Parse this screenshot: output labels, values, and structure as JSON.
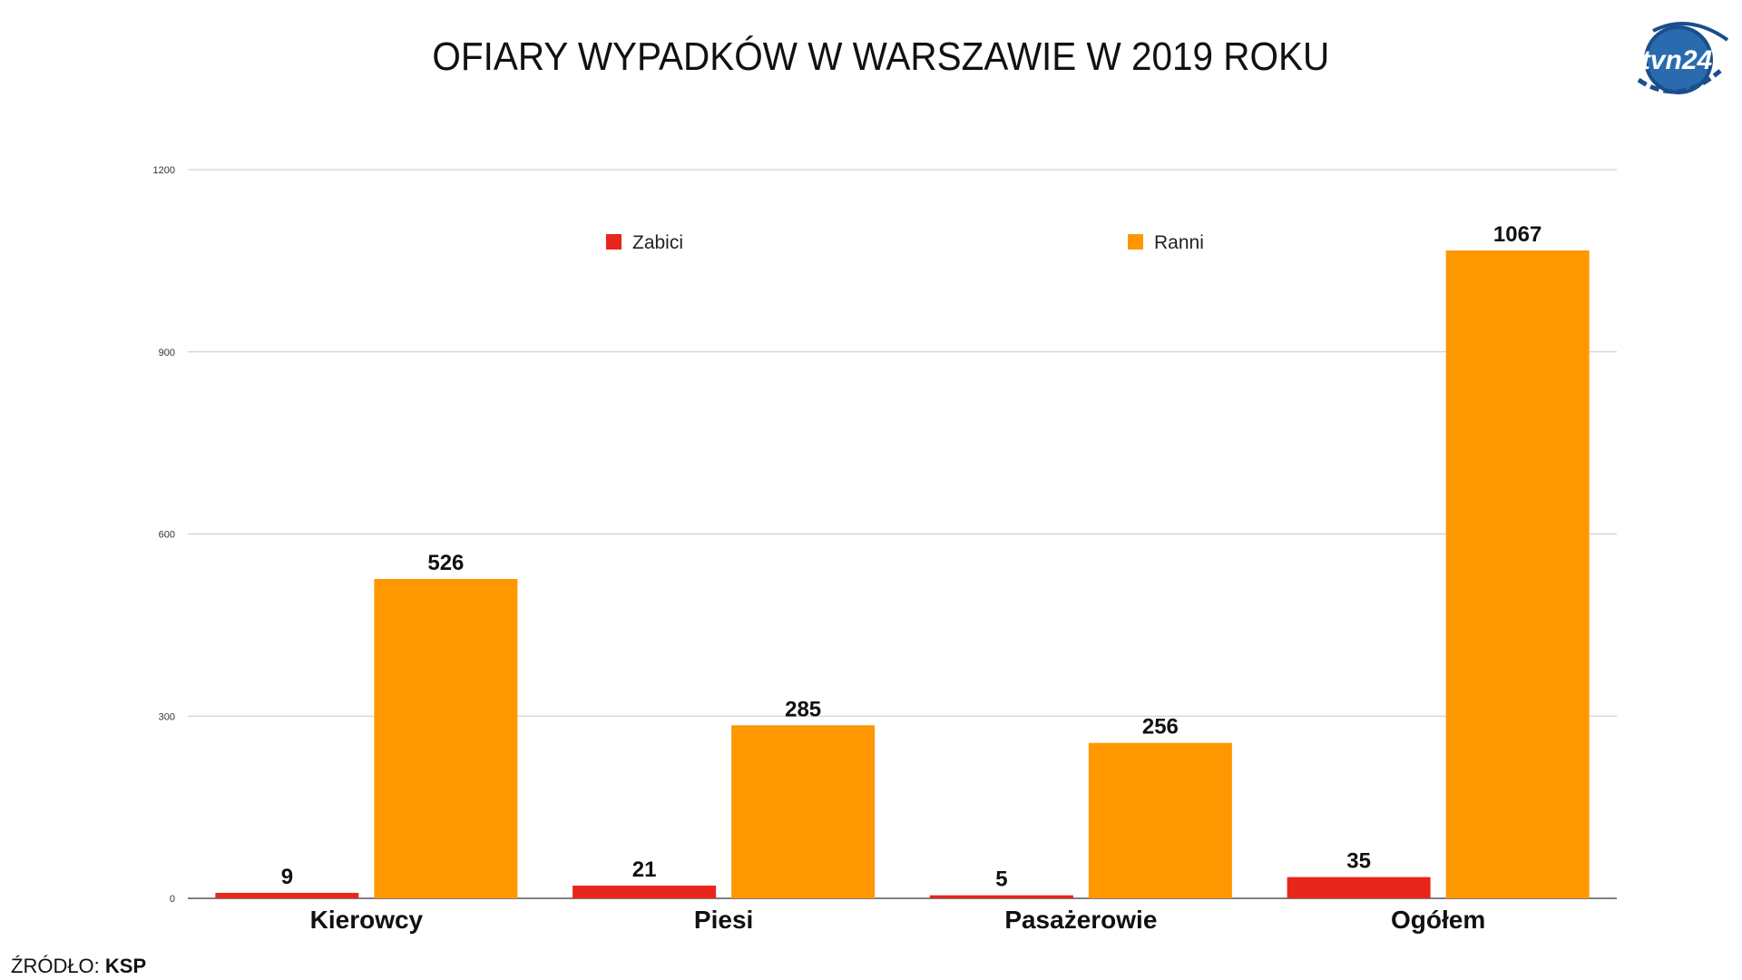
{
  "chart_data": {
    "type": "bar",
    "title": "OFIARY WYPADKÓW W WARSZAWIE W 2019 ROKU",
    "categories": [
      "Kierowcy",
      "Piesi",
      "Pasażerowie",
      "Ogółem"
    ],
    "series": [
      {
        "name": "Zabici",
        "values": [
          9,
          21,
          5,
          35
        ],
        "color": "#e8261c"
      },
      {
        "name": "Ranni",
        "values": [
          526,
          285,
          256,
          1067
        ],
        "color": "#ff9700"
      }
    ],
    "ylim": [
      0,
      1200
    ],
    "yticks": [
      0,
      300,
      600,
      900,
      1200
    ],
    "grid": true,
    "legend_position": "top-center",
    "xlabel": "",
    "ylabel": ""
  },
  "source": {
    "label": "ŹRÓDŁO:",
    "value": "KSP"
  },
  "logo": {
    "text": "tvn24",
    "icon": "tvn24-logo-icon",
    "color": "#1a4e8c"
  }
}
